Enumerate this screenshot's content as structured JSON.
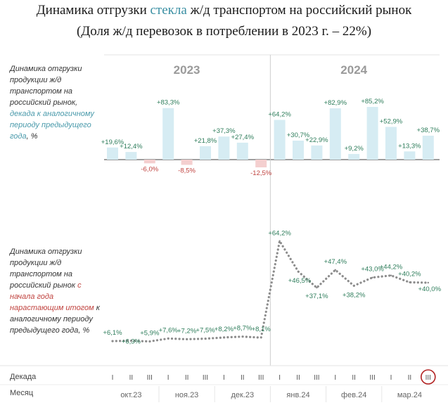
{
  "title": {
    "line1_pre": "Динамика отгрузки ",
    "line1_accent": "стекла",
    "line1_post": " ж/д транспортом на российский рынок",
    "line2": "(Доля ж/д перевозок в потреблении в 2023 г. – 22%)"
  },
  "top_label": {
    "plain": "Динамика отгрузки продукции ж/д транспортом на российский рынок,",
    "teal": "декада к аналогичному периоду предыдущего года",
    "suffix": ", %"
  },
  "bottom_label": {
    "plain": "Динамика отгрузки продукции ж/д транспортом на российский рынок",
    "red": "с начала года нарастающим итогом",
    "suffix": "к аналогичному периоду предыдущего года, %"
  },
  "axis": {
    "decade_header": "Декада",
    "month_header": "Месяц",
    "decade_ticks": [
      "I",
      "II",
      "III",
      "I",
      "II",
      "III",
      "I",
      "II",
      "III",
      "I",
      "II",
      "III",
      "I",
      "II",
      "III",
      "I",
      "II",
      "III"
    ],
    "months": [
      "окт.23",
      "ноя.23",
      "дек.23",
      "янв.24",
      "фев.24",
      "мар.24"
    ]
  },
  "colors": {
    "bar_positive": "#d6ecf3",
    "bar_negative": "#f4cfcf",
    "label_positive": "#2e7d5b",
    "label_negative": "#c0433f",
    "line": "#8c8c8c",
    "highlight_circle": "#b22222",
    "accent_title": "#3a8fa3"
  },
  "chart_data": [
    {
      "type": "bar",
      "years": [
        "2023",
        "2024"
      ],
      "categories": [
        "окт.23 I",
        "окт.23 II",
        "окт.23 III",
        "ноя.23 I",
        "ноя.23 II",
        "ноя.23 III",
        "дек.23 I",
        "дек.23 II",
        "дек.23 III",
        "янв.24 I",
        "янв.24 II",
        "янв.24 III",
        "фев.24 I",
        "фев.24 II",
        "фев.24 III",
        "мар.24 I",
        "мар.24 II",
        "мар.24 III"
      ],
      "values": [
        19.6,
        12.4,
        -6.0,
        83.3,
        -8.5,
        21.8,
        37.3,
        27.4,
        -12.5,
        64.2,
        30.7,
        22.9,
        82.9,
        9.2,
        85.2,
        52.9,
        13.3,
        38.7
      ],
      "labels": [
        "+19,6%",
        "+12,4%",
        "-6,0%",
        "+83,3%",
        "-8,5%",
        "+21,8%",
        "+37,3%",
        "+27,4%",
        "-12,5%",
        "+64,2%",
        "+30,7%",
        "+22,9%",
        "+82,9%",
        "+9,2%",
        "+85,2%",
        "+52,9%",
        "+13,3%",
        "+38,7%"
      ]
    },
    {
      "type": "line",
      "categories": [
        "окт.23 I",
        "окт.23 II",
        "окт.23 III",
        "ноя.23 I",
        "ноя.23 II",
        "ноя.23 III",
        "дек.23 I",
        "дек.23 II",
        "дек.23 III",
        "янв.24 I",
        "янв.24 II",
        "янв.24 III",
        "фев.24 I",
        "фев.24 II",
        "фев.24 III",
        "мар.24 I",
        "мар.24 II",
        "мар.24 III"
      ],
      "values": [
        6.1,
        6.3,
        5.9,
        7.6,
        7.2,
        7.5,
        8.2,
        8.7,
        8.1,
        64.2,
        46.5,
        37.1,
        47.4,
        38.2,
        43.0,
        44.2,
        40.2,
        40.0
      ],
      "labels": [
        "+6,1%",
        "+6,3%",
        "+5,9%",
        "+7,6%",
        "+7,2%",
        "+7,5%",
        "+8,2%",
        "+8,7%",
        "+8,1%",
        "+64,2%",
        "+46,5%",
        "+37,1%",
        "+47,4%",
        "+38,2%",
        "+43,0%",
        "+44,2%",
        "+40,2%",
        "+40,0%"
      ]
    }
  ]
}
